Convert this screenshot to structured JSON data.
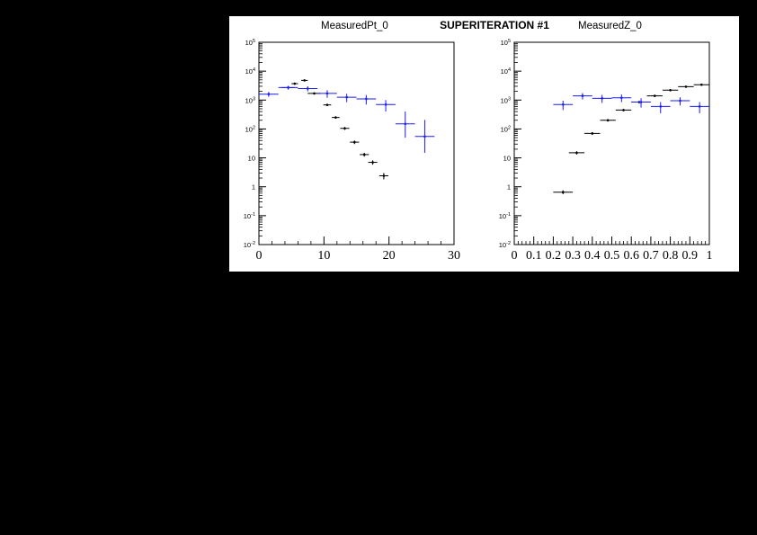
{
  "super_title": "SUPERITERATION #1",
  "chart_data": [
    {
      "type": "scatter",
      "title": "MeasuredPt_0",
      "xlim": [
        0,
        30
      ],
      "ylim": [
        0.01,
        100000
      ],
      "yscale": "log",
      "x_tick_labels": [
        "0",
        "10",
        "20",
        "30"
      ],
      "x_ticks": [
        0,
        10,
        20,
        30
      ],
      "y_tick_labels": [
        {
          "base": "10",
          "exp": "-2"
        },
        {
          "base": "10",
          "exp": "-1"
        },
        {
          "base": "1",
          "exp": ""
        },
        {
          "base": "10",
          "exp": ""
        },
        {
          "base": "10",
          "exp": "2"
        },
        {
          "base": "10",
          "exp": "3"
        },
        {
          "base": "10",
          "exp": "4"
        },
        {
          "base": "10",
          "exp": "5"
        }
      ],
      "y_ticks": [
        0.01,
        0.1,
        1,
        10,
        100,
        1000,
        10000,
        100000
      ],
      "series": [
        {
          "color": "#000000",
          "points": [
            {
              "x": 4.5,
              "xerr": 1.0,
              "y": 2700,
              "yerr_lo": 200,
              "yerr_hi": 200
            },
            {
              "x": 5.5,
              "xerr": 0.5,
              "y": 3700,
              "yerr_lo": 300,
              "yerr_hi": 300
            },
            {
              "x": 7.0,
              "xerr": 0.5,
              "y": 4800,
              "yerr_lo": 300,
              "yerr_hi": 300
            },
            {
              "x": 8.5,
              "xerr": 1.0,
              "y": 1700,
              "yerr_lo": 150,
              "yerr_hi": 150
            },
            {
              "x": 10.5,
              "xerr": 0.6,
              "y": 680,
              "yerr_lo": 60,
              "yerr_hi": 60
            },
            {
              "x": 11.8,
              "xerr": 0.6,
              "y": 250,
              "yerr_lo": 25,
              "yerr_hi": 25
            },
            {
              "x": 13.2,
              "xerr": 0.7,
              "y": 105,
              "yerr_lo": 12,
              "yerr_hi": 12
            },
            {
              "x": 14.7,
              "xerr": 0.7,
              "y": 35,
              "yerr_lo": 5,
              "yerr_hi": 5
            },
            {
              "x": 16.2,
              "xerr": 0.7,
              "y": 13,
              "yerr_lo": 2,
              "yerr_hi": 2
            },
            {
              "x": 17.5,
              "xerr": 0.7,
              "y": 7,
              "yerr_lo": 1.2,
              "yerr_hi": 1.2
            },
            {
              "x": 19.2,
              "xerr": 0.7,
              "y": 2.4,
              "yerr_lo": 0.6,
              "yerr_hi": 0.6
            }
          ]
        },
        {
          "color": "#1a1aff",
          "points": [
            {
              "x": 1.5,
              "xerr": 1.5,
              "y": 1600,
              "yerr_lo": 300,
              "yerr_hi": 300
            },
            {
              "x": 4.5,
              "xerr": 1.5,
              "y": 2700,
              "yerr_lo": 400,
              "yerr_hi": 400
            },
            {
              "x": 7.5,
              "xerr": 1.5,
              "y": 2500,
              "yerr_lo": 500,
              "yerr_hi": 500
            },
            {
              "x": 10.5,
              "xerr": 1.5,
              "y": 1700,
              "yerr_lo": 500,
              "yerr_hi": 500
            },
            {
              "x": 13.5,
              "xerr": 1.5,
              "y": 1250,
              "yerr_lo": 400,
              "yerr_hi": 400
            },
            {
              "x": 16.5,
              "xerr": 1.5,
              "y": 1100,
              "yerr_lo": 400,
              "yerr_hi": 400
            },
            {
              "x": 19.5,
              "xerr": 1.5,
              "y": 700,
              "yerr_lo": 300,
              "yerr_hi": 300
            },
            {
              "x": 22.5,
              "xerr": 1.5,
              "y": 150,
              "yerr_lo": 100,
              "yerr_hi": 250
            },
            {
              "x": 25.5,
              "xerr": 1.5,
              "y": 55,
              "yerr_lo": 40,
              "yerr_hi": 150
            }
          ]
        }
      ]
    },
    {
      "type": "scatter",
      "title": "MeasuredZ_0",
      "xlim": [
        0,
        1
      ],
      "ylim": [
        0.01,
        100000
      ],
      "yscale": "log",
      "x_tick_labels": [
        "0",
        "0.1",
        "0.2",
        "0.3",
        "0.4",
        "0.5",
        "0.6",
        "0.7",
        "0.8",
        "0.9",
        "1"
      ],
      "x_ticks": [
        0,
        0.1,
        0.2,
        0.3,
        0.4,
        0.5,
        0.6,
        0.7,
        0.8,
        0.9,
        1
      ],
      "y_tick_labels": [
        {
          "base": "10",
          "exp": "-2"
        },
        {
          "base": "10",
          "exp": "-1"
        },
        {
          "base": "1",
          "exp": ""
        },
        {
          "base": "10",
          "exp": ""
        },
        {
          "base": "10",
          "exp": "2"
        },
        {
          "base": "10",
          "exp": "3"
        },
        {
          "base": "10",
          "exp": "4"
        },
        {
          "base": "10",
          "exp": "5"
        }
      ],
      "y_ticks": [
        0.01,
        0.1,
        1,
        10,
        100,
        1000,
        10000,
        100000
      ],
      "series": [
        {
          "color": "#000000",
          "points": [
            {
              "x": 0.25,
              "xerr": 0.05,
              "y": 0.65,
              "yerr_lo": 0.1,
              "yerr_hi": 0.1
            },
            {
              "x": 0.32,
              "xerr": 0.04,
              "y": 15,
              "yerr_lo": 2,
              "yerr_hi": 2
            },
            {
              "x": 0.4,
              "xerr": 0.04,
              "y": 70,
              "yerr_lo": 8,
              "yerr_hi": 8
            },
            {
              "x": 0.48,
              "xerr": 0.04,
              "y": 200,
              "yerr_lo": 20,
              "yerr_hi": 20
            },
            {
              "x": 0.56,
              "xerr": 0.04,
              "y": 450,
              "yerr_lo": 40,
              "yerr_hi": 40
            },
            {
              "x": 0.64,
              "xerr": 0.04,
              "y": 850,
              "yerr_lo": 70,
              "yerr_hi": 70
            },
            {
              "x": 0.72,
              "xerr": 0.04,
              "y": 1400,
              "yerr_lo": 100,
              "yerr_hi": 100
            },
            {
              "x": 0.8,
              "xerr": 0.04,
              "y": 2200,
              "yerr_lo": 150,
              "yerr_hi": 150
            },
            {
              "x": 0.88,
              "xerr": 0.04,
              "y": 2900,
              "yerr_lo": 200,
              "yerr_hi": 200
            },
            {
              "x": 0.96,
              "xerr": 0.04,
              "y": 3400,
              "yerr_lo": 250,
              "yerr_hi": 250
            }
          ]
        },
        {
          "color": "#1a1aff",
          "points": [
            {
              "x": 0.25,
              "xerr": 0.05,
              "y": 700,
              "yerr_lo": 250,
              "yerr_hi": 250
            },
            {
              "x": 0.35,
              "xerr": 0.05,
              "y": 1400,
              "yerr_lo": 350,
              "yerr_hi": 350
            },
            {
              "x": 0.45,
              "xerr": 0.05,
              "y": 1150,
              "yerr_lo": 350,
              "yerr_hi": 350
            },
            {
              "x": 0.55,
              "xerr": 0.05,
              "y": 1200,
              "yerr_lo": 350,
              "yerr_hi": 350
            },
            {
              "x": 0.65,
              "xerr": 0.05,
              "y": 850,
              "yerr_lo": 300,
              "yerr_hi": 300
            },
            {
              "x": 0.75,
              "xerr": 0.05,
              "y": 600,
              "yerr_lo": 250,
              "yerr_hi": 250
            },
            {
              "x": 0.85,
              "xerr": 0.05,
              "y": 950,
              "yerr_lo": 300,
              "yerr_hi": 300
            },
            {
              "x": 0.95,
              "xerr": 0.05,
              "y": 600,
              "yerr_lo": 250,
              "yerr_hi": 250
            }
          ]
        }
      ]
    }
  ]
}
